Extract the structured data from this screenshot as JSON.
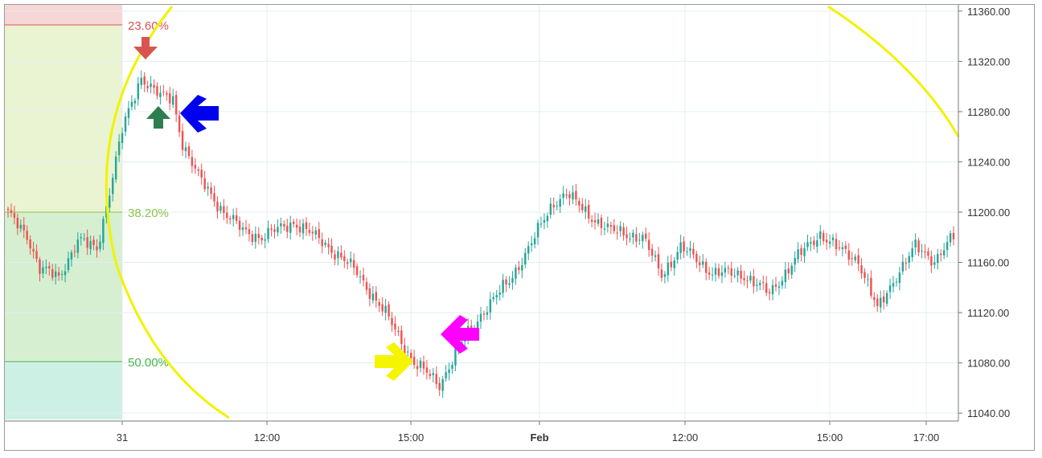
{
  "chart_data": {
    "type": "candlestick",
    "title": "",
    "ylim": [
      11035,
      11365
    ],
    "y_ticks": [
      "11040.00",
      "11080.00",
      "11120.00",
      "11160.00",
      "11200.00",
      "11240.00",
      "11280.00",
      "11320.00",
      "11360.00"
    ],
    "x_ticks": [
      {
        "label": "31",
        "bold": false
      },
      {
        "label": "12:00",
        "bold": false
      },
      {
        "label": "15:00",
        "bold": false
      },
      {
        "label": "Feb",
        "bold": true
      },
      {
        "label": "12:00",
        "bold": false
      },
      {
        "label": "15:00",
        "bold": false
      },
      {
        "label": "17:00",
        "bold": false
      }
    ],
    "fib_levels": [
      {
        "label": "23.60%",
        "value": 11349,
        "color": "#d9534f"
      },
      {
        "label": "38.20%",
        "value": 11200,
        "color": "#8bc34a"
      },
      {
        "label": "50.00%",
        "value": 11081,
        "color": "#43b649"
      }
    ],
    "up_color": "#26a69a",
    "down_color": "#ef5350",
    "key_points": [
      {
        "bar": 0,
        "value": 11198
      },
      {
        "bar": 6,
        "value": 11182
      },
      {
        "bar": 10,
        "value": 11155
      },
      {
        "bar": 16,
        "value": 11148
      },
      {
        "bar": 22,
        "value": 11178
      },
      {
        "bar": 28,
        "value": 11170
      },
      {
        "bar": 36,
        "value": 11265
      },
      {
        "bar": 42,
        "value": 11308
      },
      {
        "bar": 48,
        "value": 11292
      },
      {
        "bar": 52,
        "value": 11290
      },
      {
        "bar": 55,
        "value": 11255
      },
      {
        "bar": 60,
        "value": 11228
      },
      {
        "bar": 68,
        "value": 11200
      },
      {
        "bar": 74,
        "value": 11185
      },
      {
        "bar": 80,
        "value": 11180
      },
      {
        "bar": 90,
        "value": 11192
      },
      {
        "bar": 100,
        "value": 11175
      },
      {
        "bar": 110,
        "value": 11152
      },
      {
        "bar": 120,
        "value": 11115
      },
      {
        "bar": 128,
        "value": 11080
      },
      {
        "bar": 136,
        "value": 11063
      },
      {
        "bar": 142,
        "value": 11092
      },
      {
        "bar": 150,
        "value": 11122
      },
      {
        "bar": 158,
        "value": 11145
      },
      {
        "bar": 166,
        "value": 11180
      },
      {
        "bar": 172,
        "value": 11208
      },
      {
        "bar": 176,
        "value": 11215
      },
      {
        "bar": 182,
        "value": 11200
      },
      {
        "bar": 190,
        "value": 11185
      },
      {
        "bar": 200,
        "value": 11180
      },
      {
        "bar": 206,
        "value": 11150
      },
      {
        "bar": 212,
        "value": 11172
      },
      {
        "bar": 222,
        "value": 11152
      },
      {
        "bar": 232,
        "value": 11150
      },
      {
        "bar": 240,
        "value": 11135
      },
      {
        "bar": 248,
        "value": 11162
      },
      {
        "bar": 256,
        "value": 11183
      },
      {
        "bar": 262,
        "value": 11170
      },
      {
        "bar": 268,
        "value": 11162
      },
      {
        "bar": 274,
        "value": 11122
      },
      {
        "bar": 280,
        "value": 11150
      },
      {
        "bar": 286,
        "value": 11172
      },
      {
        "bar": 292,
        "value": 11162
      },
      {
        "bar": 298,
        "value": 11180
      }
    ],
    "markers": [
      {
        "name": "red-down-arrow",
        "color": "#d9534f"
      },
      {
        "name": "green-up-arrow",
        "color": "#2e7d4f"
      },
      {
        "name": "blue-left-arrow",
        "color": "#0000ee"
      },
      {
        "name": "yellow-right-arrow",
        "color": "#f5f500"
      },
      {
        "name": "magenta-left-arrow",
        "color": "#ff00ff"
      }
    ],
    "arc_color": "#f2f200"
  }
}
